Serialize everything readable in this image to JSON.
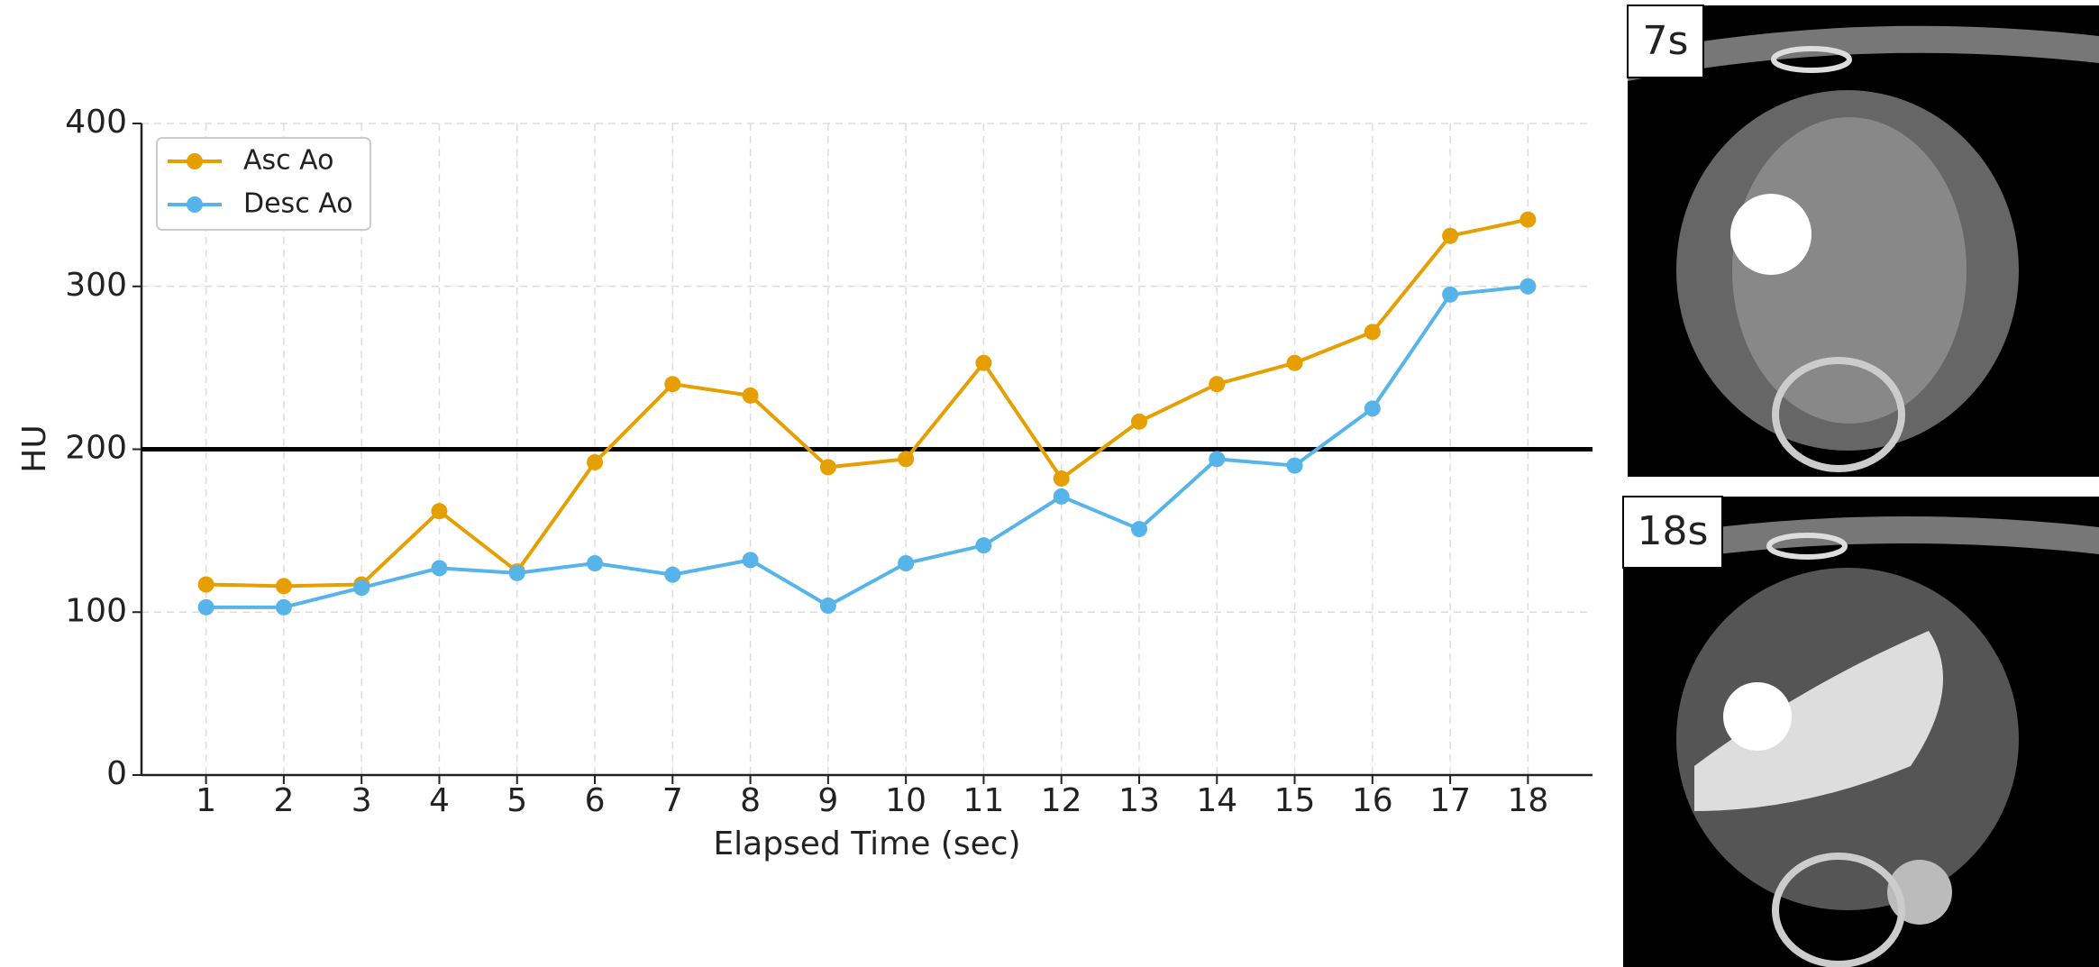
{
  "chart_data": {
    "type": "line",
    "xlabel": "Elapsed Time (sec)",
    "ylabel": "HU",
    "x": [
      1,
      2,
      3,
      4,
      5,
      6,
      7,
      8,
      9,
      10,
      11,
      12,
      13,
      14,
      15,
      16,
      17,
      18
    ],
    "series": [
      {
        "name": "Asc Ao",
        "color": "#e69f00",
        "values": [
          117,
          116,
          117,
          162,
          125,
          192,
          240,
          233,
          189,
          194,
          253,
          182,
          217,
          240,
          253,
          272,
          331,
          341
        ]
      },
      {
        "name": "Desc Ao",
        "color": "#56b4e9",
        "values": [
          103,
          103,
          115,
          127,
          124,
          130,
          123,
          132,
          104,
          130,
          141,
          171,
          151,
          194,
          190,
          225,
          295,
          300
        ]
      }
    ],
    "hline": 200,
    "xlim": [
      0.17,
      18.83
    ],
    "ylim": [
      0,
      400
    ],
    "xticks": [
      1,
      2,
      3,
      4,
      5,
      6,
      7,
      8,
      9,
      10,
      11,
      12,
      13,
      14,
      15,
      16,
      17,
      18
    ],
    "yticks": [
      0,
      100,
      200,
      300,
      400
    ],
    "grid": true,
    "legend": "upper left"
  },
  "panels": [
    "7s",
    "18s"
  ]
}
